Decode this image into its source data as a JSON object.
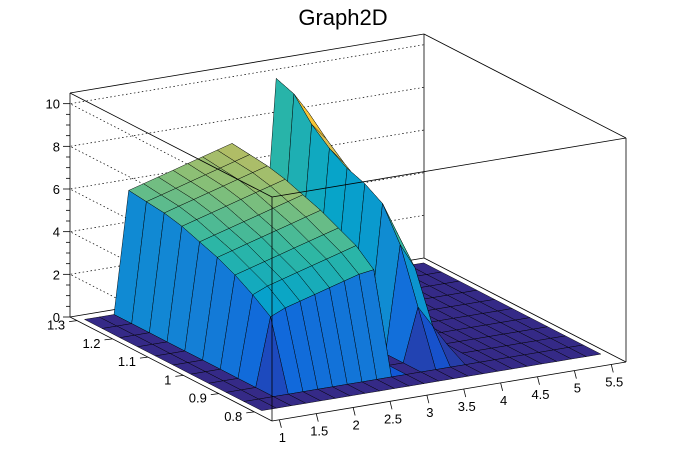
{
  "chart_data": {
    "type": "surface",
    "title": "Graph2D",
    "x_ticks": [
      "1",
      "1.5",
      "2",
      "2.5",
      "3",
      "3.5",
      "4",
      "4.5",
      "5",
      "5.5"
    ],
    "x_tick_values": [
      1,
      1.5,
      2,
      2.5,
      3,
      3.5,
      4,
      4.5,
      5,
      5.5
    ],
    "y_ticks": [
      "0.8",
      "0.9",
      "1",
      "1.1",
      "1.2",
      "1.3"
    ],
    "y_tick_values": [
      0.8,
      0.9,
      1.0,
      1.1,
      1.2,
      1.3
    ],
    "z_ticks": [
      "0",
      "2",
      "4",
      "6",
      "8",
      "10"
    ],
    "z_tick_values": [
      0,
      2,
      4,
      6,
      8,
      10
    ],
    "xlim": [
      0.9,
      5.7
    ],
    "ylim": [
      0.75,
      1.32
    ],
    "zlim": [
      0,
      10.5
    ],
    "grid": true,
    "colormap": [
      "#352a87",
      "#0f5cdd",
      "#1481d6",
      "#06a4ca",
      "#2eb7a4",
      "#87bf77",
      "#d1bb59",
      "#fec832",
      "#f9fb0e"
    ],
    "grid_x": [
      1.0,
      1.2,
      1.4,
      1.6,
      1.8,
      2.0,
      2.2,
      2.4,
      2.6,
      2.8,
      3.0,
      3.2,
      3.4,
      3.6,
      3.8,
      4.0,
      4.2,
      4.4,
      4.6,
      4.8,
      5.0,
      5.2,
      5.4,
      5.6
    ],
    "grid_y": [
      0.8,
      0.85,
      0.9,
      0.95,
      1.0,
      1.05,
      1.1,
      1.15,
      1.2,
      1.25,
      1.3
    ],
    "z_values": [
      [
        0.0,
        0.0,
        0.0,
        0.0,
        0.0,
        0.0,
        0.0,
        0.0,
        0.0,
        0.0,
        0.0,
        0.0,
        0.0,
        0.0,
        0.0,
        0.0,
        0.0,
        0.0,
        0.0,
        0.0,
        0.0,
        0.0,
        0.0,
        0.0
      ],
      [
        0.0,
        0.0,
        0.0,
        0.0,
        0.0,
        0.0,
        0.0,
        0.0,
        0.0,
        0.0,
        0.0,
        0.0,
        0.0,
        0.0,
        0.0,
        0.0,
        0.0,
        0.0,
        0.0,
        0.0,
        0.0,
        0.0,
        0.0,
        0.0
      ],
      [
        0.0,
        0.0,
        0.0,
        3.2,
        3.5,
        3.7,
        3.9,
        4.1,
        4.3,
        4.5,
        4.6,
        0.0,
        0.0,
        2.5,
        1.5,
        0.5,
        0.0,
        0.0,
        0.0,
        0.0,
        0.0,
        0.0,
        0.0,
        0.0
      ],
      [
        0.0,
        0.0,
        0.0,
        3.8,
        4.1,
        4.3,
        4.5,
        4.7,
        4.9,
        5.1,
        5.3,
        0.0,
        0.0,
        5.0,
        3.8,
        1.0,
        0.0,
        0.0,
        0.0,
        0.0,
        0.0,
        0.0,
        0.0,
        0.0
      ],
      [
        0.0,
        0.0,
        0.0,
        4.3,
        4.5,
        4.7,
        4.9,
        5.1,
        5.3,
        5.5,
        5.7,
        0.0,
        0.0,
        6.5,
        5.0,
        1.5,
        0.0,
        0.0,
        0.0,
        0.0,
        0.0,
        0.0,
        0.0,
        0.0
      ],
      [
        0.0,
        0.0,
        0.0,
        4.7,
        4.9,
        5.1,
        5.3,
        5.5,
        5.7,
        5.9,
        6.1,
        0.0,
        0.0,
        7.0,
        6.0,
        2.0,
        0.0,
        0.0,
        0.0,
        0.0,
        0.0,
        0.0,
        0.0,
        0.0
      ],
      [
        0.0,
        0.0,
        0.0,
        5.0,
        5.2,
        5.4,
        5.6,
        5.8,
        6.0,
        6.2,
        6.4,
        0.0,
        0.0,
        7.3,
        6.4,
        2.5,
        0.0,
        0.0,
        0.0,
        0.0,
        0.0,
        0.0,
        0.0,
        0.0
      ],
      [
        0.0,
        0.0,
        0.0,
        5.3,
        5.5,
        5.7,
        5.9,
        6.1,
        6.3,
        6.5,
        6.7,
        0.0,
        0.0,
        7.8,
        7.0,
        3.0,
        0.0,
        0.0,
        0.0,
        0.0,
        0.0,
        0.0,
        0.0,
        0.0
      ],
      [
        0.0,
        0.0,
        0.0,
        5.5,
        5.7,
        5.9,
        6.1,
        6.3,
        6.5,
        6.7,
        6.9,
        0.0,
        0.0,
        8.5,
        7.7,
        4.0,
        0.0,
        0.0,
        0.0,
        0.0,
        0.0,
        0.0,
        0.0,
        0.0
      ],
      [
        0.0,
        0.0,
        0.0,
        5.6,
        5.8,
        6.0,
        6.2,
        6.4,
        6.6,
        6.8,
        7.0,
        0.0,
        0.0,
        9.5,
        8.5,
        5.0,
        0.0,
        0.0,
        0.0,
        0.0,
        0.0,
        0.0,
        0.0,
        0.0
      ],
      [
        0.0,
        0.0,
        0.0,
        5.7,
        5.9,
        6.1,
        6.3,
        6.5,
        6.7,
        6.9,
        7.1,
        0.0,
        0.0,
        9.8,
        9.0,
        6.0,
        0.0,
        0.0,
        0.0,
        0.0,
        0.0,
        0.0,
        0.0,
        0.0
      ]
    ]
  }
}
